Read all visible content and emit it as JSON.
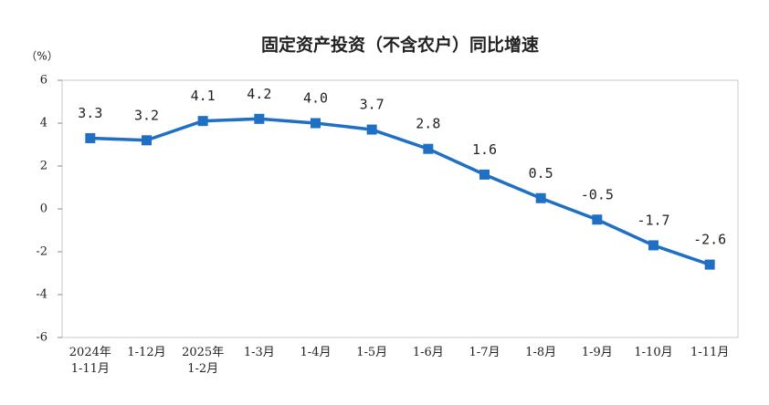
{
  "chart_data": {
    "type": "line",
    "title": "固定资产投资（不含农户）同比增速",
    "y_unit": "（%）",
    "categories": [
      "2024年\n1-11月",
      "1-12月",
      "2025年\n1-2月",
      "1-3月",
      "1-4月",
      "1-5月",
      "1-6月",
      "1-7月",
      "1-8月",
      "1-9月",
      "1-10月",
      "1-11月"
    ],
    "values": [
      3.3,
      3.2,
      4.1,
      4.2,
      4.0,
      3.7,
      2.8,
      1.6,
      0.5,
      -0.5,
      -1.7,
      -2.6
    ],
    "value_labels": [
      "3.3",
      "3.2",
      "4.1",
      "4.2",
      "4.0",
      "3.7",
      "2.8",
      "1.6",
      "0.5",
      "-0.5",
      "-1.7",
      "-2.6"
    ],
    "color": "#1f6fc5",
    "ylim": [
      -6,
      6
    ],
    "yticks": [
      -6,
      -4,
      -2,
      0,
      2,
      4,
      6
    ],
    "grid": false
  }
}
